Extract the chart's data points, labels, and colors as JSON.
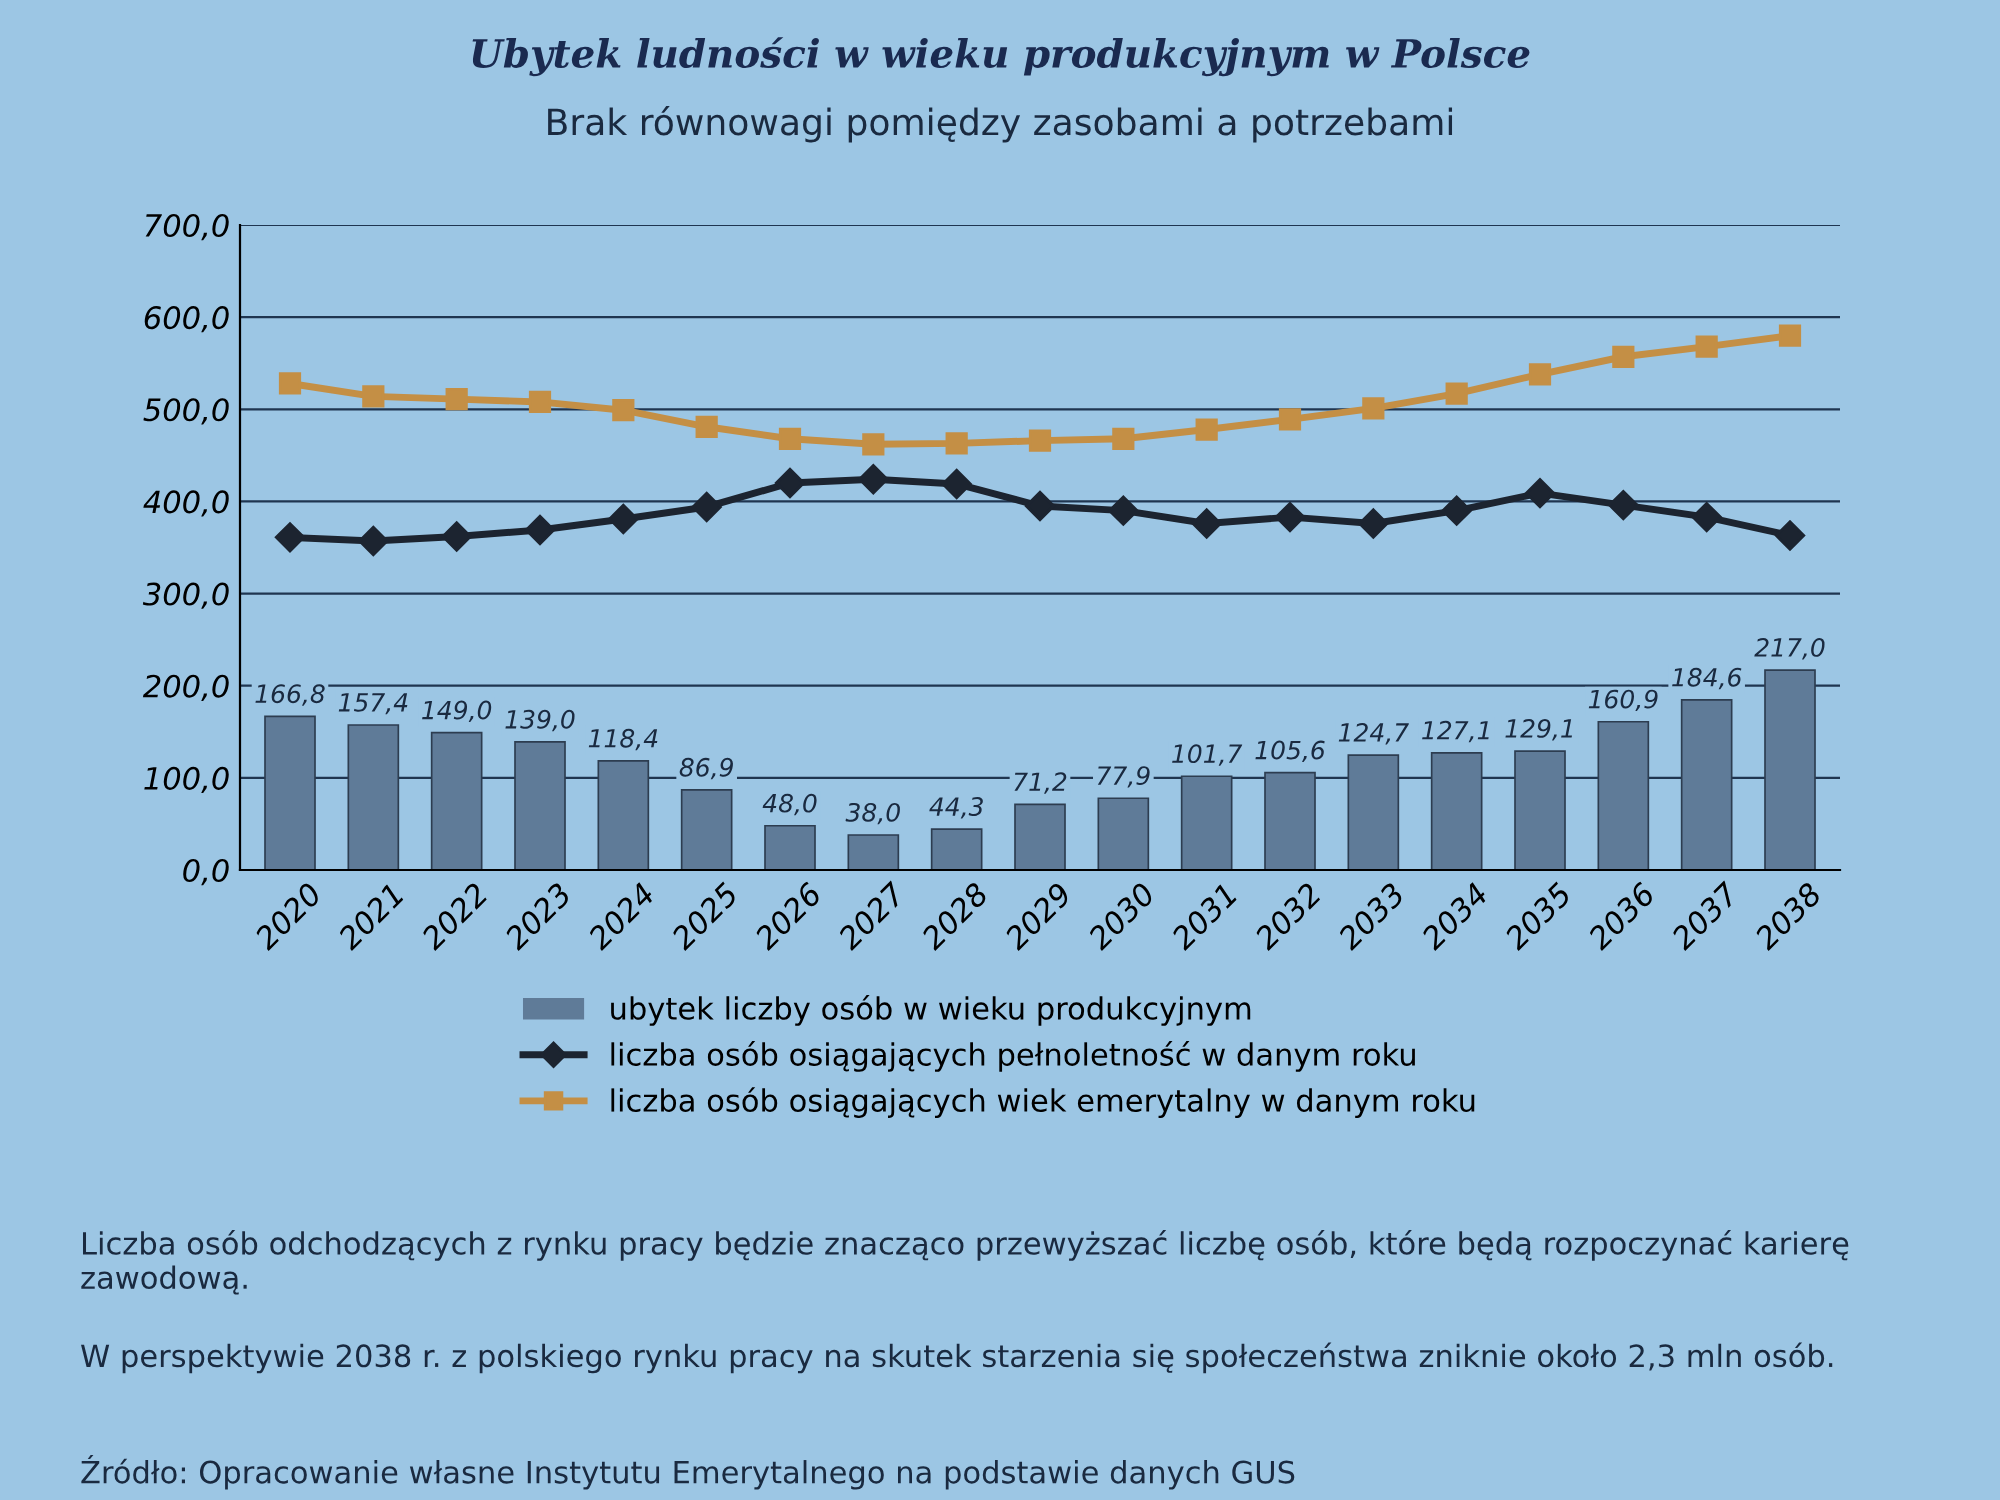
{
  "chart_data": {
    "type": "bar",
    "title": "Ubytek ludności w wieku produkcyjnym w Polsce",
    "subtitle": "Brak równowagi pomiędzy zasobami a potrzebami",
    "categories": [
      "2020",
      "2021",
      "2022",
      "2023",
      "2024",
      "2025",
      "2026",
      "2027",
      "2028",
      "2029",
      "2030",
      "2031",
      "2032",
      "2033",
      "2034",
      "2035",
      "2036",
      "2037",
      "2038"
    ],
    "series": [
      {
        "name": "ubytek liczby osób w wieku produkcyjnym",
        "color": "#5f7b98",
        "values": [
          166.8,
          157.4,
          149.0,
          139.0,
          118.4,
          86.9,
          48.0,
          38.0,
          44.3,
          71.2,
          77.9,
          101.7,
          105.6,
          124.7,
          127.1,
          129.1,
          160.9,
          184.6,
          217.0
        ],
        "value_labels": [
          "166,8",
          "157,4",
          "149,0",
          "139,0",
          "118,4",
          "86,9",
          "48,0",
          "38,0",
          "44,3",
          "71,2",
          "77,9",
          "101,7",
          "105,6",
          "124,7",
          "127,1",
          "129,1",
          "160,9",
          "184,6",
          "217,0"
        ]
      },
      {
        "name": "liczba osób osiągających pełnoletność w danym roku",
        "type": "line",
        "color": "#1c2430",
        "marker": "diamond",
        "values": [
          361,
          357,
          362,
          369,
          381,
          394,
          420,
          424,
          419,
          395,
          390,
          376,
          383,
          376,
          390,
          409,
          396,
          383,
          363
        ]
      },
      {
        "name": "liczba osób osiągających wiek emerytalny w danym roku",
        "type": "line",
        "color": "#c48f45",
        "marker": "square",
        "values": [
          528,
          514,
          511,
          508,
          499,
          481,
          468,
          462,
          463,
          466,
          468,
          478,
          489,
          501,
          517,
          538,
          557,
          568,
          580
        ]
      }
    ],
    "ylim": [
      0,
      700
    ],
    "yticks": [
      {
        "value": 0,
        "label": "0,0"
      },
      {
        "value": 100,
        "label": "100,0"
      },
      {
        "value": 200,
        "label": "200,0"
      },
      {
        "value": 300,
        "label": "300,0"
      },
      {
        "value": 400,
        "label": "400,0"
      },
      {
        "value": 500,
        "label": "500,0"
      },
      {
        "value": 600,
        "label": "600,0"
      },
      {
        "value": 700,
        "label": "700,0"
      }
    ],
    "grid": "y",
    "legend": "bottom",
    "line_style": "solid",
    "annotations": [
      "Liczba osób odchodzących z rynku pracy będzie znacząco przewyższać liczbę osób, które będą rozpoczynać karierę zawodową.",
      "W perspektywie 2038 r. z polskiego rynku pracy na skutek starzenia się społeczeństwa zniknie około 2,3 mln osób.",
      "Źródło: Opracowanie własne Instytutu Emerytalnego na podstawie danych GUS"
    ]
  }
}
